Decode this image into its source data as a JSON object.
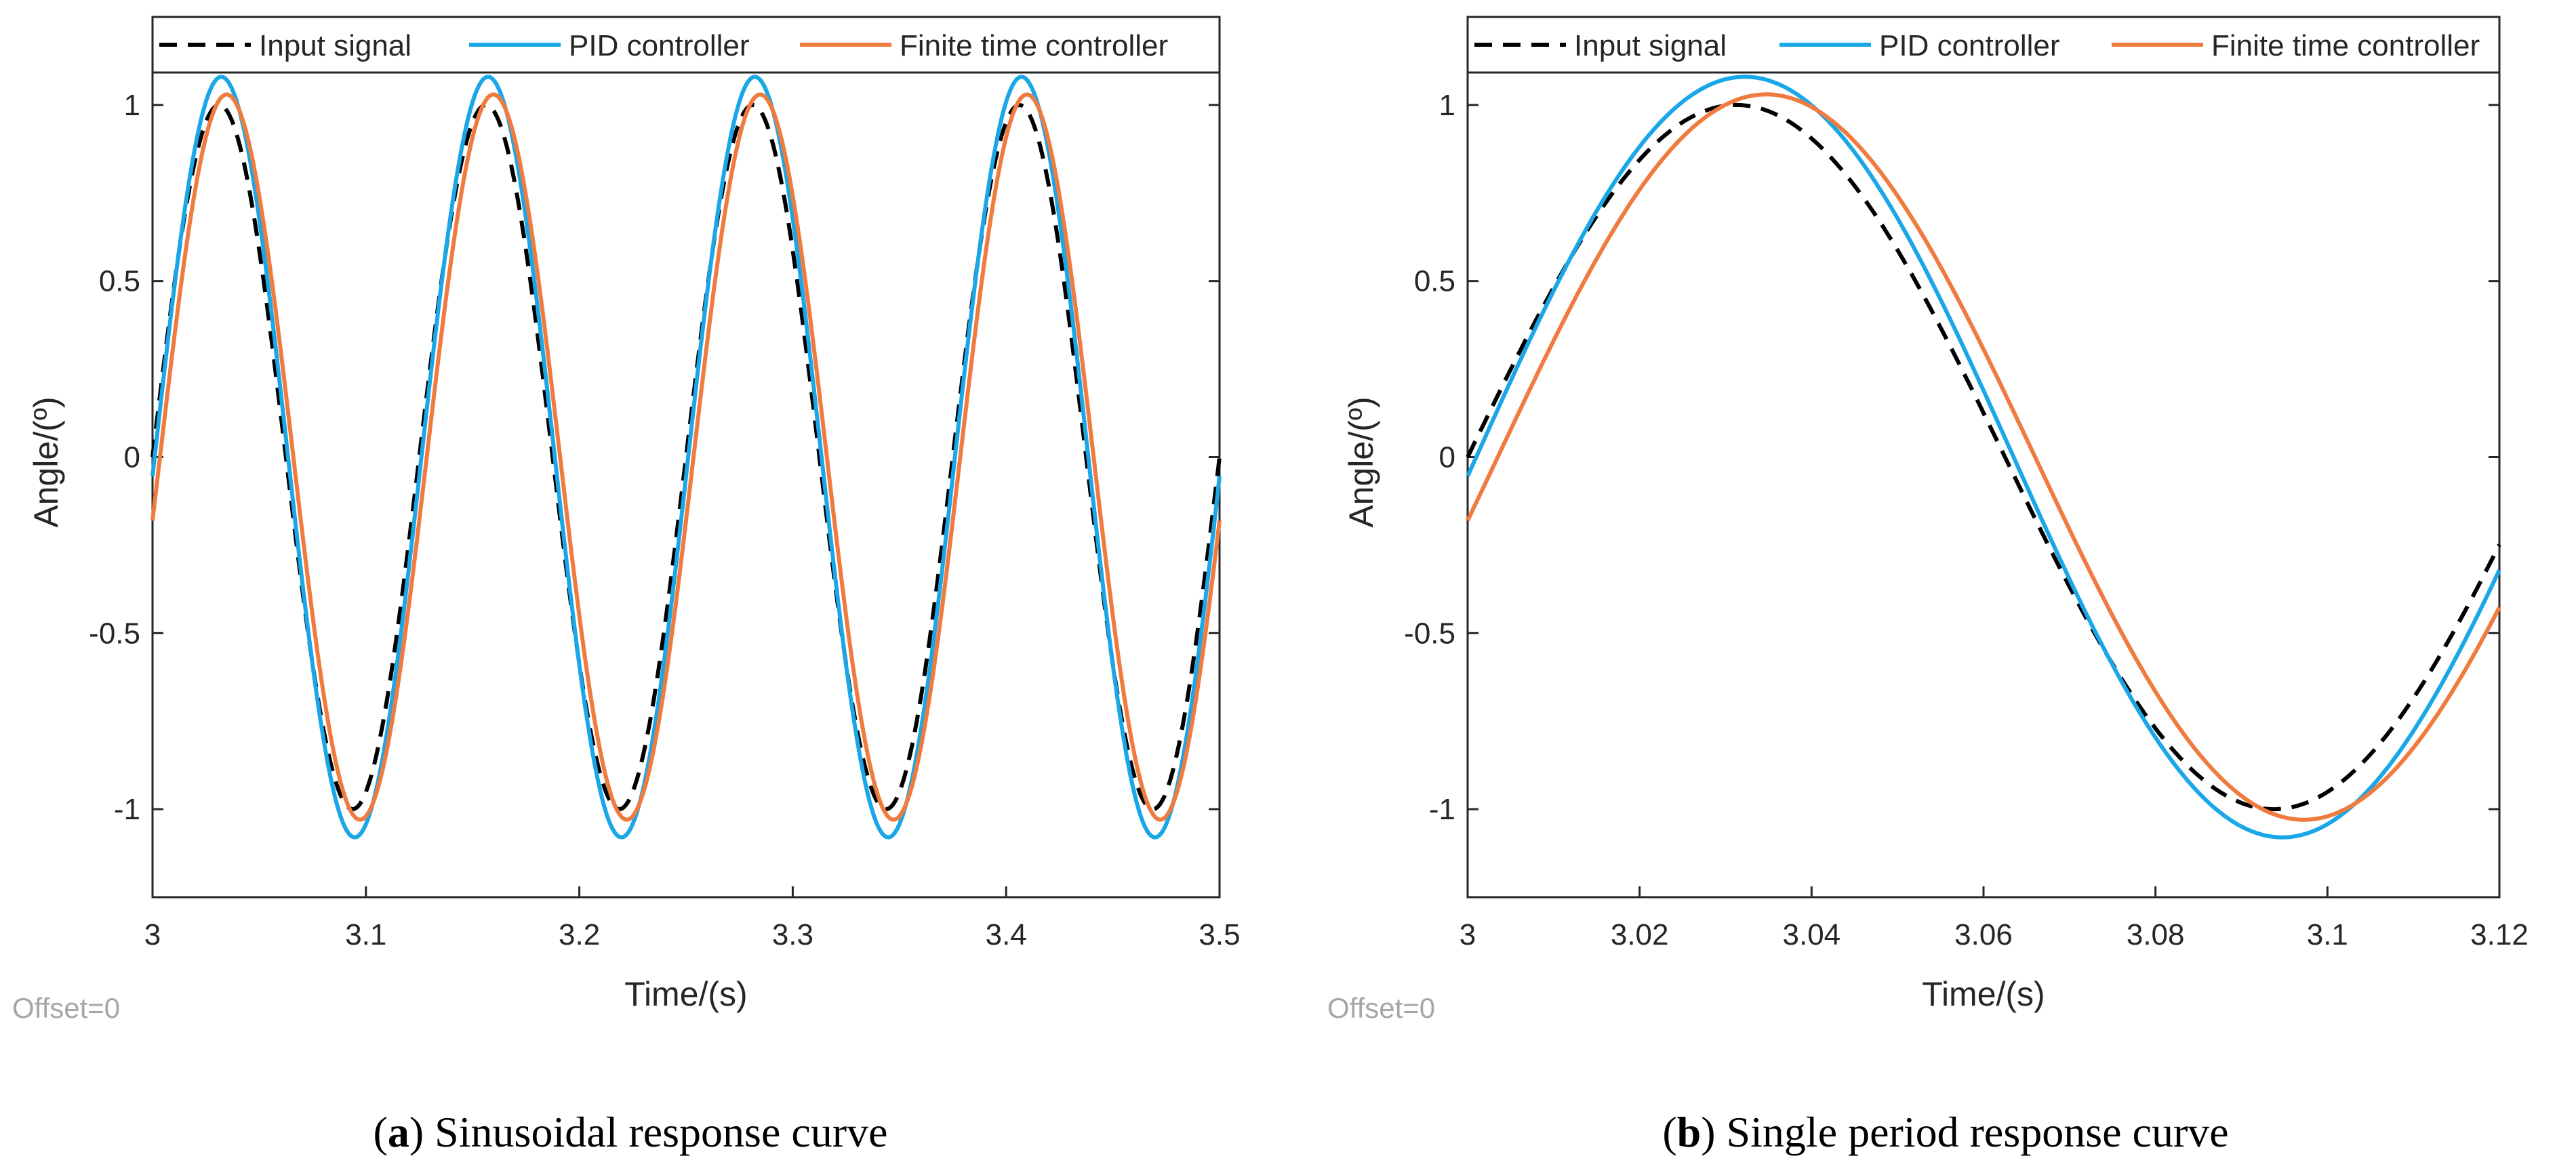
{
  "chart_data": [
    {
      "type": "line",
      "caption": {
        "letter": "a",
        "open": "(",
        "close": ")",
        "text": " Sinusoidal response curve"
      },
      "xlabel": "Time/(s)",
      "ylabel": "Angle/(º)",
      "xlim": [
        3,
        3.5
      ],
      "ylim": [
        -1.25,
        1.25
      ],
      "xticks": [
        3,
        3.1,
        3.2,
        3.3,
        3.4,
        3.5
      ],
      "xtick_labels": [
        "3",
        "3.1",
        "3.2",
        "3.3",
        "3.4",
        "3.5"
      ],
      "yticks": [
        1,
        0.5,
        0,
        -0.5,
        -1
      ],
      "ytick_labels": [
        "1",
        "0.5",
        "0",
        "-0.5",
        "-1"
      ],
      "offset_note": "Offset=0",
      "legend": [
        "Input signal",
        "PID controller",
        "Finite time controller"
      ],
      "legend_location": "top",
      "series": [
        {
          "name": "Input signal",
          "color": "#000000",
          "style": "dashed",
          "function": "sine",
          "frequency": 8,
          "amplitude": 1.0,
          "phase_shift": 0.0,
          "sample_step": 0.001
        },
        {
          "name": "PID controller",
          "color": "#1aa7e8",
          "style": "solid",
          "function": "sine",
          "frequency": 8,
          "amplitude": 1.08,
          "phase_shift": 0.001,
          "sample_step": 0.001
        },
        {
          "name": "Finite time controller",
          "color": "#f07b3f",
          "style": "solid",
          "function": "sine",
          "frequency": 8,
          "amplitude": 1.03,
          "phase_shift": 0.0035,
          "sample_step": 0.001
        }
      ]
    },
    {
      "type": "line",
      "caption": {
        "letter": "b",
        "open": "(",
        "close": ")",
        "text": " Single period response curve"
      },
      "xlabel": "Time/(s)",
      "ylabel": "Angle/(º)",
      "xlim": [
        3,
        3.12
      ],
      "ylim": [
        -1.25,
        1.25
      ],
      "xticks": [
        3,
        3.02,
        3.04,
        3.06,
        3.08,
        3.1,
        3.12
      ],
      "xtick_labels": [
        "3",
        "3.02",
        "3.04",
        "3.06",
        "3.08",
        "3.1",
        "3.12"
      ],
      "yticks": [
        1,
        0.5,
        0,
        -0.5,
        -1
      ],
      "ytick_labels": [
        "1",
        "0.5",
        "0",
        "-0.5",
        "-1"
      ],
      "offset_note": "Offset=0",
      "legend": [
        "Input signal",
        "PID controller",
        "Finite time controller"
      ],
      "legend_location": "top",
      "series": [
        {
          "name": "Input signal",
          "color": "#000000",
          "style": "dashed",
          "function": "sine",
          "frequency": 8,
          "amplitude": 1.0,
          "phase_shift": 0.0,
          "sample_step": 0.0004
        },
        {
          "name": "PID controller",
          "color": "#1aa7e8",
          "style": "solid",
          "function": "sine",
          "frequency": 8,
          "amplitude": 1.08,
          "phase_shift": 0.001,
          "sample_step": 0.0004
        },
        {
          "name": "Finite time controller",
          "color": "#f07b3f",
          "style": "solid",
          "function": "sine",
          "frequency": 8,
          "amplitude": 1.03,
          "phase_shift": 0.0035,
          "sample_step": 0.0004
        }
      ]
    }
  ]
}
